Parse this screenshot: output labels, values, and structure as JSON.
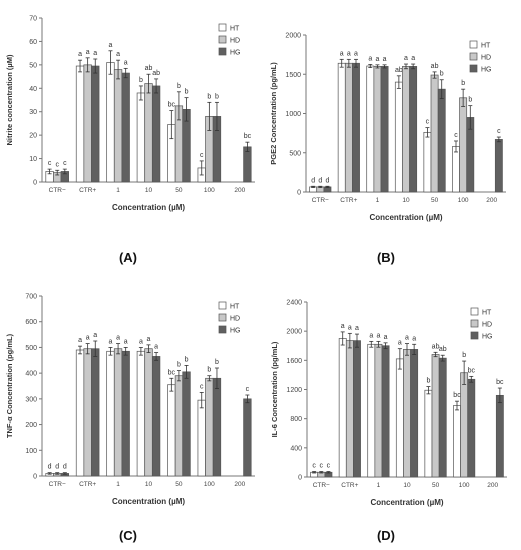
{
  "figure": {
    "categories": [
      "CTR−",
      "CTR+",
      "1",
      "10",
      "50",
      "100",
      "200"
    ],
    "xlabel": "Concentration (µM)",
    "legend": [
      "HT",
      "HD",
      "HG"
    ],
    "colors": {
      "HT": "#ffffff",
      "HD": "#c8c8c8",
      "HG": "#606060"
    }
  },
  "chart_data": [
    {
      "type": "bar",
      "label": "(A)",
      "ylabel": "Nitrite concentration (µM)",
      "xlabel": "Concentration (µM)",
      "categories": [
        "CTR−",
        "CTR+",
        "1",
        "10",
        "50",
        "100",
        "200"
      ],
      "ylim": [
        0,
        70
      ],
      "yticks": [
        0,
        10,
        20,
        30,
        40,
        50,
        60,
        70
      ],
      "legend_position": "top-right",
      "series": [
        {
          "name": "HT",
          "values": [
            4.5,
            49.5,
            51,
            38,
            24.5,
            6,
            null
          ],
          "errors": [
            1,
            2.5,
            5,
            3,
            6,
            3,
            null
          ],
          "letters": [
            "c",
            "a",
            "a",
            "b",
            "bc",
            "c",
            null
          ]
        },
        {
          "name": "HD",
          "values": [
            4,
            50,
            48,
            42,
            32.5,
            28,
            null
          ],
          "errors": [
            1,
            3,
            4,
            4,
            6,
            6,
            null
          ],
          "letters": [
            "c",
            "a",
            "a",
            "ab",
            "b",
            "b",
            null
          ]
        },
        {
          "name": "HG",
          "values": [
            4.5,
            49.5,
            46.5,
            41,
            31,
            28,
            15
          ],
          "errors": [
            1,
            3,
            2,
            3,
            5,
            6,
            2
          ],
          "letters": [
            "c",
            "a",
            "a",
            "ab",
            "b",
            "b",
            "bc"
          ]
        }
      ]
    },
    {
      "type": "bar",
      "label": "(B)",
      "ylabel": "PGE2 Concentration (pg/mL)",
      "xlabel": "Concentration (µM)",
      "categories": [
        "CTR−",
        "CTR+",
        "1",
        "10",
        "50",
        "100",
        "200"
      ],
      "ylim": [
        0,
        2000
      ],
      "yticks": [
        0,
        500,
        1000,
        1500,
        2000
      ],
      "legend_position": "top-right",
      "series": [
        {
          "name": "HT",
          "values": [
            65,
            1640,
            1605,
            1400,
            760,
            580,
            null
          ],
          "errors": [
            8,
            50,
            20,
            80,
            60,
            70,
            null
          ],
          "letters": [
            "d",
            "a",
            "a",
            "ab",
            "c",
            "c",
            null
          ]
        },
        {
          "name": "HD",
          "values": [
            65,
            1640,
            1600,
            1600,
            1490,
            1200,
            null
          ],
          "errors": [
            8,
            50,
            20,
            30,
            40,
            110,
            null
          ],
          "letters": [
            "d",
            "a",
            "a",
            "a",
            "ab",
            "b",
            null
          ]
        },
        {
          "name": "HG",
          "values": [
            65,
            1640,
            1600,
            1600,
            1310,
            950,
            670
          ],
          "errors": [
            8,
            50,
            20,
            30,
            120,
            150,
            30
          ],
          "letters": [
            "d",
            "a",
            "a",
            "a",
            "b",
            "b",
            "c"
          ]
        }
      ]
    },
    {
      "type": "bar",
      "label": "(C)",
      "ylabel": "TNF-α Concentration (pg/mL)",
      "xlabel": "Concentration (µM)",
      "categories": [
        "CTR−",
        "CTR+",
        "1",
        "10",
        "50",
        "100",
        "200"
      ],
      "ylim": [
        0,
        700
      ],
      "yticks": [
        0,
        100,
        200,
        300,
        400,
        500,
        600,
        700
      ],
      "legend_position": "top-right",
      "series": [
        {
          "name": "HT",
          "values": [
            10,
            490,
            485,
            485,
            355,
            295,
            null
          ],
          "errors": [
            3,
            15,
            15,
            15,
            25,
            30,
            null
          ],
          "letters": [
            "d",
            "a",
            "a",
            "a",
            "bc",
            "c",
            null
          ]
        },
        {
          "name": "HD",
          "values": [
            10,
            495,
            495,
            495,
            390,
            380,
            null
          ],
          "errors": [
            3,
            20,
            20,
            15,
            20,
            10,
            null
          ],
          "letters": [
            "d",
            "a",
            "a",
            "a",
            "b",
            "b",
            null
          ]
        },
        {
          "name": "HG",
          "values": [
            10,
            495,
            485,
            465,
            405,
            380,
            300
          ],
          "errors": [
            3,
            30,
            15,
            15,
            25,
            40,
            15
          ],
          "letters": [
            "d",
            "a",
            "a",
            "a",
            "b",
            "b",
            "c"
          ]
        }
      ]
    },
    {
      "type": "bar",
      "label": "(D)",
      "ylabel": "IL-6 Concentration (pg/mL)",
      "xlabel": "Concentration (µM)",
      "categories": [
        "CTR−",
        "CTR+",
        "1",
        "10",
        "50",
        "100",
        "200"
      ],
      "ylim": [
        0,
        2400
      ],
      "yticks": [
        0,
        400,
        800,
        1200,
        1600,
        2000,
        2400
      ],
      "legend_position": "top-right",
      "series": [
        {
          "name": "HT",
          "values": [
            65,
            1900,
            1820,
            1620,
            1190,
            980,
            null
          ],
          "errors": [
            10,
            90,
            40,
            140,
            50,
            60,
            null
          ],
          "letters": [
            "c",
            "a",
            "a",
            "a",
            "b",
            "bc",
            null
          ]
        },
        {
          "name": "HD",
          "values": [
            65,
            1870,
            1820,
            1750,
            1680,
            1430,
            null
          ],
          "errors": [
            10,
            100,
            40,
            80,
            30,
            160,
            null
          ],
          "letters": [
            "c",
            "a",
            "a",
            "a",
            "ab",
            "b",
            null
          ]
        },
        {
          "name": "HG",
          "values": [
            65,
            1870,
            1800,
            1750,
            1630,
            1340,
            1120
          ],
          "errors": [
            10,
            90,
            40,
            70,
            40,
            40,
            100
          ],
          "letters": [
            "c",
            "a",
            "a",
            "a",
            "ab",
            "bc",
            "bc"
          ]
        }
      ]
    }
  ]
}
